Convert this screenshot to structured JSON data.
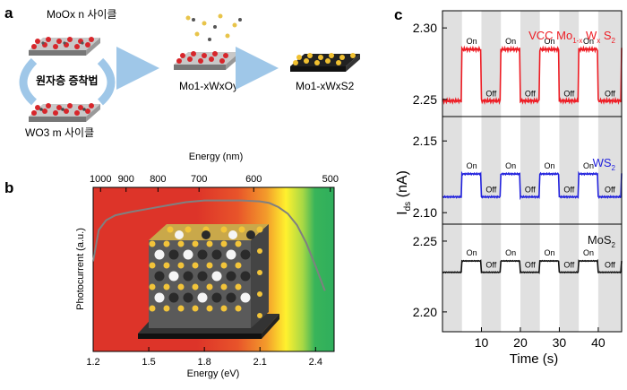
{
  "panel_a": {
    "label": "a",
    "moox_cycle": "MoOx n 사이클",
    "ald": "원자층 증착법",
    "wo3_cycle": "WO3 m 사이클",
    "mixed_oxide": "Mo1-xWxOy",
    "alloy": "Mo1-xWxS2"
  },
  "panel_b": {
    "label": "b"
  },
  "panel_c": {
    "label": "c"
  },
  "colors": {
    "vcc": "#ee1c24",
    "ws2": "#2222dd",
    "mos2": "#111111",
    "photocurrent": "#808080",
    "arrow": "#9fc7e8",
    "off_band": "#e0e0e0"
  },
  "chart_data": [
    {
      "type": "line",
      "panel": "b",
      "xlabel": "Energy (eV)",
      "ylabel": "Photocurrent (a.u.)",
      "x2label": "Energy (nm)",
      "xlim": [
        1.2,
        2.5
      ],
      "xticks": [
        "1.2",
        "1.5",
        "1.8",
        "2.1",
        "2.4"
      ],
      "x2ticks": [
        "1000",
        "900",
        "800",
        "700",
        "600",
        "500"
      ],
      "x2tick_values": [
        1.2398,
        1.3776,
        1.5498,
        1.7712,
        2.0663,
        2.4796
      ],
      "y_ticks_shown": false,
      "series": [
        {
          "x": [
            1.2,
            1.23,
            1.27,
            1.32,
            1.4,
            1.5,
            1.6,
            1.7,
            1.8,
            1.9,
            2.0,
            2.1,
            2.15,
            2.2,
            2.25,
            2.3,
            2.35,
            2.4,
            2.45
          ],
          "values": [
            0.55,
            0.74,
            0.8,
            0.83,
            0.85,
            0.87,
            0.89,
            0.91,
            0.92,
            0.92,
            0.92,
            0.915,
            0.905,
            0.88,
            0.84,
            0.77,
            0.66,
            0.52,
            0.37
          ]
        }
      ]
    },
    {
      "type": "line",
      "panel": "c",
      "xlabel": "Time (s)",
      "ylabel": "Ids (nA)",
      "xlim": [
        0,
        46
      ],
      "xticks": [
        "10",
        "20",
        "30",
        "40"
      ],
      "grid": false,
      "off_intervals": [
        [
          0,
          5
        ],
        [
          10,
          15
        ],
        [
          20,
          25
        ],
        [
          30,
          35
        ],
        [
          40,
          46
        ]
      ],
      "on_label": "On",
      "off_label": "Off",
      "subplots": [
        {
          "name": "VCC Mo1-xWxS2",
          "ylim": [
            2.238,
            2.312
          ],
          "yticks": [
            "2.25",
            "2.30"
          ],
          "off_level": 2.249,
          "on_level": 2.285
        },
        {
          "name": "WS2",
          "ylim": [
            2.092,
            2.167
          ],
          "yticks": [
            "2.10",
            "2.15"
          ],
          "off_level": 2.111,
          "on_level": 2.127
        },
        {
          "name": "MoS2",
          "ylim": [
            2.186,
            2.262
          ],
          "yticks": [
            "2.20",
            "2.25"
          ],
          "off_level": 2.228,
          "on_level": 2.236
        }
      ]
    }
  ]
}
